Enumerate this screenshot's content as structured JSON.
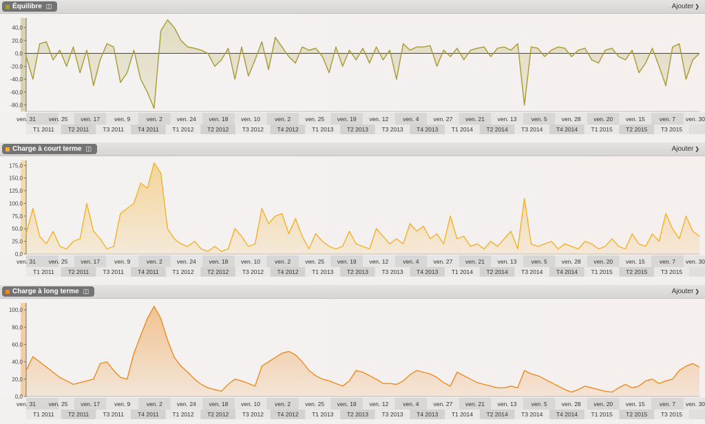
{
  "x_axis": {
    "month_labels": [
      "ven. 31",
      "ven. 25",
      "ven. 17",
      "ven. 9",
      "ven. 2",
      "ven. 24",
      "ven. 18",
      "ven. 10",
      "ven. 2",
      "ven. 25",
      "ven. 19",
      "ven. 12",
      "ven. 4",
      "ven. 27",
      "ven. 21",
      "ven. 13",
      "ven. 5",
      "ven. 28",
      "ven. 20",
      "ven. 15",
      "ven. 7",
      "ven. 30"
    ],
    "quarter_labels": [
      "T1 2011",
      "T2 2011",
      "T3 2011",
      "T4 2011",
      "T1 2012",
      "T2 2012",
      "T3 2012",
      "T4 2012",
      "T1 2013",
      "T2 2013",
      "T3 2013",
      "T4 2013",
      "T1 2014",
      "T2 2014",
      "T3 2014",
      "T4 2014",
      "T1 2015",
      "T2 2015",
      "T3 2015"
    ]
  },
  "panels": [
    {
      "id": "equilibre",
      "title": "Équilibre",
      "add_label": "Ajouter",
      "color": "#a69a36",
      "dot_color": "#a69a36"
    },
    {
      "id": "court",
      "title": "Charge à court terme",
      "add_label": "Ajouter",
      "color": "#f5b12e",
      "dot_color": "#f5b12e"
    },
    {
      "id": "long",
      "title": "Charge à long terme",
      "add_label": "Ajouter",
      "color": "#ee8a1f",
      "dot_color": "#ee8a1f"
    }
  ],
  "chart_data": [
    {
      "type": "area",
      "title": "Équilibre",
      "ylim": [
        -90,
        55
      ],
      "y_ticks": [
        "40,0",
        "20,0",
        "0,0",
        "-20,0",
        "-40,0",
        "-60,0",
        "-80,0"
      ],
      "y_tick_values": [
        40,
        20,
        0,
        -20,
        -40,
        -60,
        -80
      ],
      "x_range": [
        0,
        100
      ],
      "series": [
        {
          "x": [
            0,
            1,
            2,
            3,
            4,
            5,
            6,
            7,
            8,
            9,
            10,
            11,
            12,
            13,
            14,
            15,
            16,
            17,
            18,
            19,
            20,
            21,
            22,
            23,
            24,
            25,
            26,
            27,
            28,
            29,
            30,
            31,
            32,
            33,
            34,
            35,
            36,
            37,
            38,
            39,
            40,
            41,
            42,
            43,
            44,
            45,
            46,
            47,
            48,
            49,
            50,
            51,
            52,
            53,
            54,
            55,
            56,
            57,
            58,
            59,
            60,
            61,
            62,
            63,
            64,
            65,
            66,
            67,
            68,
            69,
            70,
            71,
            72,
            73,
            74,
            75,
            76,
            77,
            78,
            79,
            80,
            81,
            82,
            83,
            84,
            85,
            86,
            87,
            88,
            89,
            90,
            91,
            92,
            93,
            94,
            95,
            96,
            97,
            98,
            99,
            100
          ],
          "values": [
            -5,
            -40,
            15,
            18,
            -10,
            5,
            -20,
            10,
            -30,
            5,
            -50,
            -10,
            15,
            10,
            -45,
            -30,
            5,
            -40,
            -60,
            -85,
            35,
            52,
            40,
            20,
            10,
            8,
            5,
            0,
            -20,
            -10,
            8,
            -40,
            10,
            -35,
            -10,
            18,
            -25,
            25,
            10,
            -5,
            -15,
            10,
            5,
            8,
            -5,
            -30,
            10,
            -20,
            5,
            -10,
            8,
            -15,
            10,
            -10,
            5,
            -40,
            15,
            5,
            10,
            10,
            12,
            -20,
            5,
            -5,
            8,
            -10,
            5,
            8,
            10,
            -5,
            8,
            10,
            5,
            15,
            -80,
            10,
            8,
            -5,
            5,
            10,
            8,
            -5,
            5,
            8,
            -10,
            -15,
            5,
            8,
            -5,
            -10,
            5,
            -30,
            -15,
            8,
            -20,
            -50,
            10,
            15,
            -40,
            -10,
            0
          ]
        }
      ]
    },
    {
      "type": "area",
      "title": "Charge à court terme",
      "ylim": [
        0,
        185
      ],
      "y_ticks": [
        "175,0",
        "150,0",
        "125,0",
        "100,0",
        "75,0",
        "50,0",
        "25,0",
        "0,0"
      ],
      "y_tick_values": [
        175,
        150,
        125,
        100,
        75,
        50,
        25,
        0
      ],
      "x_range": [
        0,
        100
      ],
      "series": [
        {
          "x": [
            0,
            1,
            2,
            3,
            4,
            5,
            6,
            7,
            8,
            9,
            10,
            11,
            12,
            13,
            14,
            15,
            16,
            17,
            18,
            19,
            20,
            21,
            22,
            23,
            24,
            25,
            26,
            27,
            28,
            29,
            30,
            31,
            32,
            33,
            34,
            35,
            36,
            37,
            38,
            39,
            40,
            41,
            42,
            43,
            44,
            45,
            46,
            47,
            48,
            49,
            50,
            51,
            52,
            53,
            54,
            55,
            56,
            57,
            58,
            59,
            60,
            61,
            62,
            63,
            64,
            65,
            66,
            67,
            68,
            69,
            70,
            71,
            72,
            73,
            74,
            75,
            76,
            77,
            78,
            79,
            80,
            81,
            82,
            83,
            84,
            85,
            86,
            87,
            88,
            89,
            90,
            91,
            92,
            93,
            94,
            95,
            96,
            97,
            98,
            99,
            100
          ],
          "values": [
            40,
            90,
            35,
            20,
            45,
            15,
            10,
            25,
            30,
            100,
            45,
            30,
            10,
            15,
            80,
            90,
            100,
            140,
            130,
            180,
            160,
            50,
            30,
            20,
            15,
            25,
            10,
            5,
            15,
            5,
            10,
            50,
            35,
            15,
            20,
            90,
            60,
            75,
            80,
            40,
            70,
            35,
            10,
            40,
            25,
            15,
            10,
            15,
            45,
            20,
            15,
            10,
            50,
            35,
            20,
            30,
            20,
            60,
            45,
            55,
            30,
            40,
            20,
            75,
            30,
            35,
            15,
            20,
            10,
            25,
            15,
            30,
            45,
            10,
            110,
            20,
            15,
            20,
            25,
            10,
            20,
            15,
            10,
            25,
            20,
            10,
            15,
            30,
            15,
            10,
            40,
            20,
            15,
            40,
            25,
            80,
            50,
            30,
            75,
            45,
            35
          ]
        }
      ]
    },
    {
      "type": "area",
      "title": "Charge à long terme",
      "ylim": [
        0,
        108
      ],
      "y_ticks": [
        "100,0",
        "80,0",
        "60,0",
        "40,0",
        "20,0",
        "0,0"
      ],
      "y_tick_values": [
        100,
        80,
        60,
        40,
        20,
        0
      ],
      "x_range": [
        0,
        100
      ],
      "series": [
        {
          "x": [
            0,
            1,
            2,
            3,
            4,
            5,
            6,
            7,
            8,
            9,
            10,
            11,
            12,
            13,
            14,
            15,
            16,
            17,
            18,
            19,
            20,
            21,
            22,
            23,
            24,
            25,
            26,
            27,
            28,
            29,
            30,
            31,
            32,
            33,
            34,
            35,
            36,
            37,
            38,
            39,
            40,
            41,
            42,
            43,
            44,
            45,
            46,
            47,
            48,
            49,
            50,
            51,
            52,
            53,
            54,
            55,
            56,
            57,
            58,
            59,
            60,
            61,
            62,
            63,
            64,
            65,
            66,
            67,
            68,
            69,
            70,
            71,
            72,
            73,
            74,
            75,
            76,
            77,
            78,
            79,
            80,
            81,
            82,
            83,
            84,
            85,
            86,
            87,
            88,
            89,
            90,
            91,
            92,
            93,
            94,
            95,
            96,
            97,
            98,
            99,
            100
          ],
          "values": [
            30,
            46,
            40,
            34,
            28,
            22,
            18,
            14,
            16,
            18,
            20,
            38,
            40,
            30,
            22,
            20,
            50,
            70,
            90,
            104,
            90,
            65,
            45,
            35,
            28,
            20,
            14,
            10,
            8,
            6,
            14,
            20,
            18,
            15,
            12,
            35,
            40,
            45,
            50,
            52,
            48,
            40,
            30,
            24,
            20,
            18,
            15,
            12,
            18,
            30,
            28,
            24,
            20,
            15,
            15,
            14,
            18,
            25,
            30,
            28,
            26,
            22,
            16,
            12,
            28,
            24,
            20,
            16,
            14,
            12,
            10,
            10,
            12,
            10,
            30,
            26,
            24,
            20,
            16,
            12,
            8,
            5,
            8,
            12,
            10,
            8,
            6,
            5,
            10,
            14,
            10,
            12,
            18,
            20,
            15,
            18,
            20,
            30,
            35,
            38,
            34
          ]
        }
      ]
    }
  ]
}
